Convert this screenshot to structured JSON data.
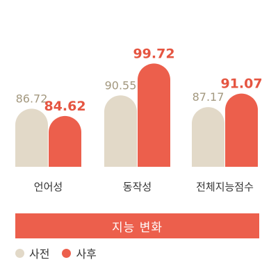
{
  "chart_data": {
    "type": "bar",
    "title": "지능 변화",
    "categories": [
      "언어성",
      "동작성",
      "전체지능점수"
    ],
    "series": [
      {
        "name": "사전",
        "values": [
          86.72,
          90.55,
          87.17
        ],
        "labels": [
          "86.72",
          "90.55",
          "87.17"
        ]
      },
      {
        "name": "사후",
        "values": [
          84.62,
          99.72,
          91.07
        ],
        "labels": [
          "84.62",
          "99.72",
          "91.07"
        ]
      }
    ],
    "ylim": [
      70,
      100
    ],
    "grid": false,
    "legend_position": "bottom-left"
  },
  "colors": {
    "before": "#e2d9c8",
    "after": "#ec5f4c",
    "before_label": "#a3987f",
    "after_label": "#e55541"
  }
}
